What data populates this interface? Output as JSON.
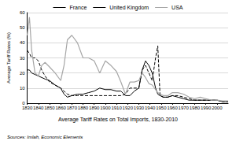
{
  "chart_data": {
    "type": "line",
    "title": "Average Tariff Rates on Total Imports, 1830-2010",
    "y_label": "Average Tariff Rates (%)",
    "annotations": [
      "Sources: Imlah, Economic Elements"
    ],
    "x": [
      1830,
      1832,
      1834,
      1837,
      1840,
      1843,
      1846,
      1850,
      1855,
      1860,
      1863,
      1866,
      1870,
      1875,
      1880,
      1885,
      1890,
      1895,
      1900,
      1905,
      1910,
      1914,
      1918,
      1922,
      1926,
      1930,
      1933,
      1936,
      1939,
      1942,
      1945,
      1947,
      1949,
      1952,
      1956,
      1960,
      1965,
      1970,
      1975,
      1980,
      1985,
      1990,
      1995,
      2000,
      2005,
      2010
    ],
    "series": [
      {
        "name": "France",
        "color": "#000000",
        "line_style": "solid",
        "values": [
          22,
          22,
          20,
          19,
          18,
          17,
          16,
          15,
          12,
          10,
          6,
          4,
          5,
          6,
          6,
          7,
          8,
          10,
          9,
          9,
          8,
          8,
          5,
          5,
          8,
          10,
          22,
          28,
          25,
          20,
          10,
          6,
          5,
          4,
          4,
          5,
          4,
          3,
          2,
          2,
          2,
          2,
          2,
          2,
          1,
          1
        ]
      },
      {
        "name": "United Kingdom",
        "color": "#000000",
        "line_style": "dashed",
        "values": [
          35,
          33,
          30,
          30,
          28,
          22,
          18,
          14,
          12,
          10,
          8,
          6,
          5,
          5,
          5,
          5,
          5,
          5,
          5,
          5,
          5,
          5,
          6,
          10,
          10,
          10,
          22,
          25,
          20,
          15,
          30,
          38,
          5,
          4,
          4,
          5,
          5,
          4,
          3,
          2,
          2,
          2,
          2,
          2,
          1,
          1
        ]
      },
      {
        "name": "USA",
        "color": "#a6a6a6",
        "line_style": "solid",
        "values": [
          45,
          57,
          35,
          20,
          18,
          25,
          27,
          24,
          20,
          15,
          25,
          42,
          45,
          40,
          30,
          30,
          28,
          20,
          28,
          25,
          21,
          14,
          6,
          14,
          14,
          15,
          20,
          17,
          13,
          12,
          9,
          7,
          6,
          5,
          5,
          7,
          7,
          6,
          4,
          3,
          4,
          3,
          2,
          2,
          1.5,
          1.5
        ]
      }
    ],
    "xlim": [
      1830,
      2010
    ],
    "xticks": [
      1830,
      1840,
      1850,
      1860,
      1870,
      1880,
      1890,
      1900,
      1910,
      1920,
      1930,
      1940,
      1950,
      1960,
      1970,
      1980,
      1990,
      2000
    ],
    "ylim": [
      0,
      60
    ],
    "yticks": [
      0,
      10,
      20,
      30,
      40,
      50,
      60
    ],
    "grid": true,
    "legend": "top"
  }
}
